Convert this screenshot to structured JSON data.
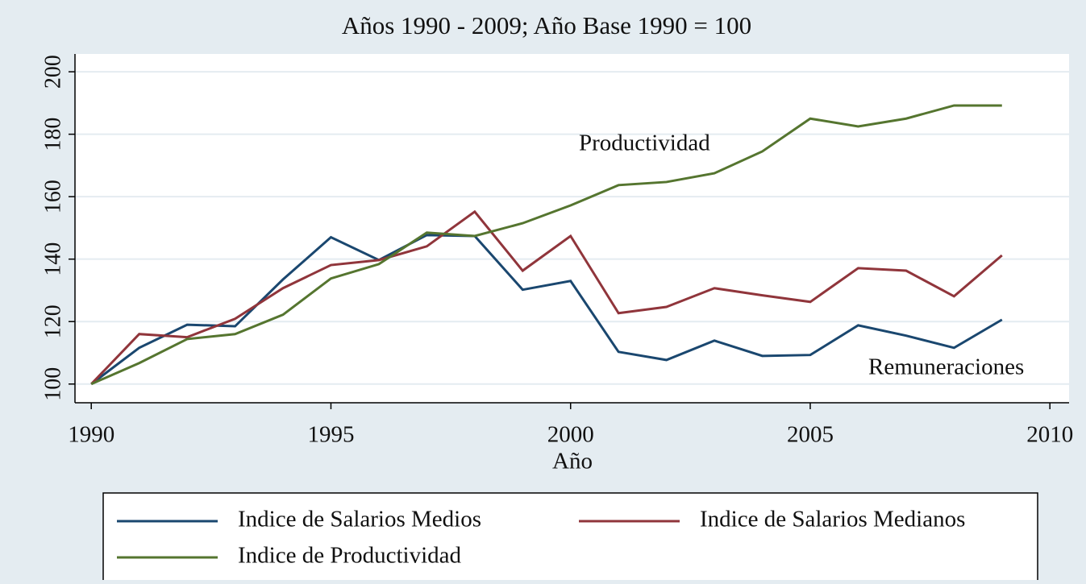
{
  "chart_data": {
    "type": "line",
    "subtitle": "Años 1990 - 2009; Año Base 1990 = 100",
    "x_label": "Año",
    "x": [
      1990,
      1991,
      1992,
      1993,
      1994,
      1995,
      1996,
      1997,
      1998,
      1999,
      2000,
      2001,
      2002,
      2003,
      2004,
      2005,
      2006,
      2007,
      2008,
      2009
    ],
    "series": [
      {
        "name": "Indice de Salarios Medios",
        "color": "#1a476f",
        "values": [
          100,
          111.6,
          119,
          118.5,
          133.5,
          147,
          139.7,
          147.7,
          147.4,
          130.2,
          133,
          110.3,
          107.7,
          113.9,
          109,
          109.3,
          118.8,
          115.5,
          111.6,
          120.6
        ]
      },
      {
        "name": "Indice de Salarios Medianos",
        "color": "#90353b",
        "values": [
          100,
          116,
          115,
          120.9,
          130.7,
          138.1,
          139.7,
          144.1,
          155.2,
          136.3,
          147.4,
          122.7,
          124.7,
          130.7,
          128.4,
          126.3,
          137.1,
          136.3,
          128.1,
          141.2
        ]
      },
      {
        "name": "Indice de Productividad",
        "color": "#55752f",
        "values": [
          100,
          106.7,
          114.4,
          116,
          122.2,
          133.8,
          138.4,
          148.5,
          147.4,
          151.5,
          157.2,
          163.7,
          164.7,
          167.5,
          174.5,
          185,
          182.5,
          185,
          189.2,
          189.2
        ]
      }
    ],
    "annotations": [
      "Productividad",
      "Remuneraciones"
    ],
    "xlim": [
      1989.66,
      2010.4
    ],
    "xticks": [
      1990,
      1995,
      2000,
      2005,
      2010
    ],
    "ylim": [
      94,
      205.7
    ],
    "yticks": [
      100,
      120,
      140,
      160,
      180,
      200
    ],
    "grid": true
  }
}
